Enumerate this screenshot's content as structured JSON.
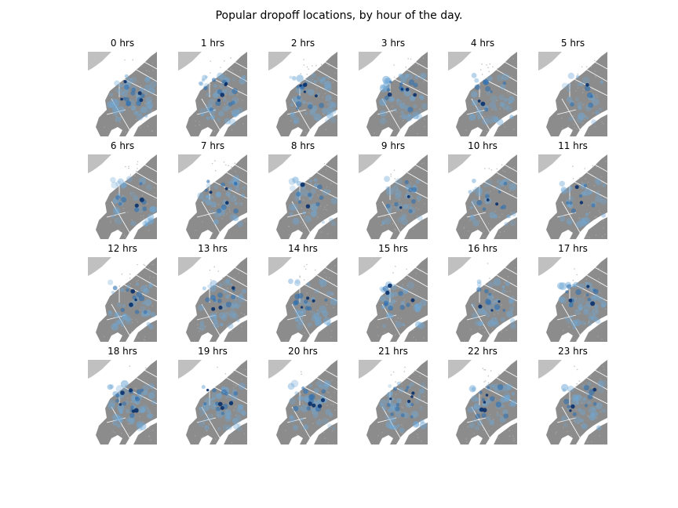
{
  "chart_data": {
    "type": "heatmap",
    "title": "Popular dropoff locations, by hour of the day.",
    "xlabel": "",
    "ylabel": "",
    "grid": false,
    "legend": "none",
    "panels": [
      {
        "hour": 0,
        "title": "0 hrs",
        "intensity": 0.7
      },
      {
        "hour": 1,
        "title": "1 hrs",
        "intensity": 0.7
      },
      {
        "hour": 2,
        "title": "2 hrs",
        "intensity": 0.6
      },
      {
        "hour": 3,
        "title": "3 hrs",
        "intensity": 0.62
      },
      {
        "hour": 4,
        "title": "4 hrs",
        "intensity": 0.38
      },
      {
        "hour": 5,
        "title": "5 hrs",
        "intensity": 0.18
      },
      {
        "hour": 6,
        "title": "6 hrs",
        "intensity": 0.35
      },
      {
        "hour": 7,
        "title": "7 hrs",
        "intensity": 0.45
      },
      {
        "hour": 8,
        "title": "8 hrs",
        "intensity": 0.3
      },
      {
        "hour": 9,
        "title": "9 hrs",
        "intensity": 0.35
      },
      {
        "hour": 10,
        "title": "10 hrs",
        "intensity": 0.35
      },
      {
        "hour": 11,
        "title": "11 hrs",
        "intensity": 0.32
      },
      {
        "hour": 12,
        "title": "12 hrs",
        "intensity": 0.5
      },
      {
        "hour": 13,
        "title": "13 hrs",
        "intensity": 0.52
      },
      {
        "hour": 14,
        "title": "14 hrs",
        "intensity": 0.45
      },
      {
        "hour": 15,
        "title": "15 hrs",
        "intensity": 0.42
      },
      {
        "hour": 16,
        "title": "16 hrs",
        "intensity": 0.42
      },
      {
        "hour": 17,
        "title": "17 hrs",
        "intensity": 0.55
      },
      {
        "hour": 18,
        "title": "18 hrs",
        "intensity": 0.8
      },
      {
        "hour": 19,
        "title": "19 hrs",
        "intensity": 0.7
      },
      {
        "hour": 20,
        "title": "20 hrs",
        "intensity": 0.62
      },
      {
        "hour": 21,
        "title": "21 hrs",
        "intensity": 0.65
      },
      {
        "hour": 22,
        "title": "22 hrs",
        "intensity": 0.6
      },
      {
        "hour": 23,
        "title": "23 hrs",
        "intensity": 0.5
      }
    ],
    "colors": {
      "land": "#8c8c8c",
      "nj_land": "#c0c0c0",
      "water": "#ffffff",
      "light_blue": "#6fa8d6",
      "mid_blue": "#2f6fb0",
      "dark_blue": "#08306b"
    }
  }
}
